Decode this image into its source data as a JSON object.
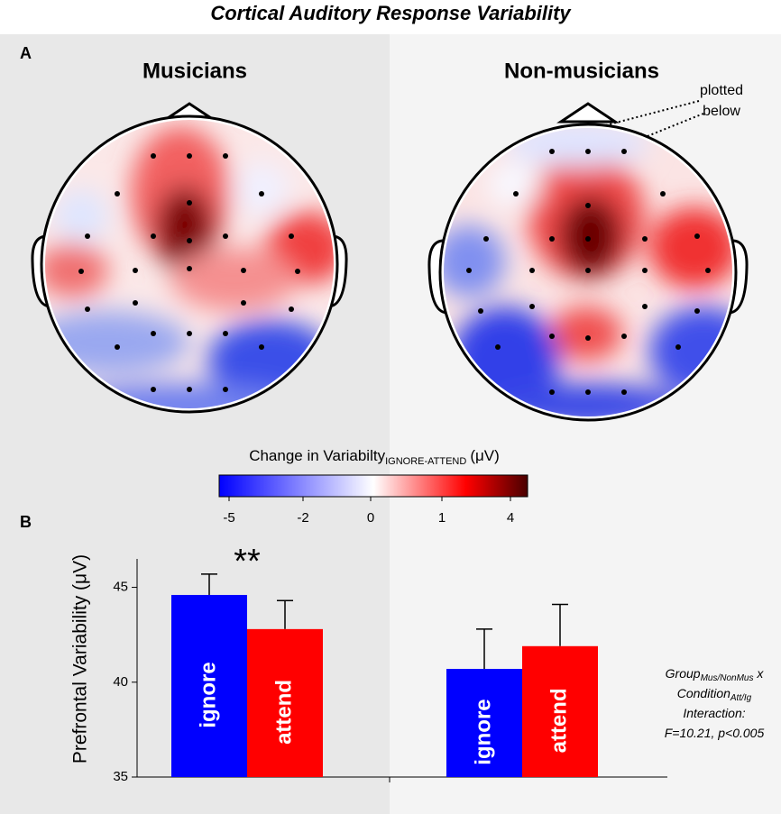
{
  "title": "Cortical Auditory Response Variability",
  "panel_a": {
    "label": "A",
    "maps": [
      {
        "title": "Musicians"
      },
      {
        "title": "Non-musicians"
      }
    ],
    "annotation": [
      "plotted",
      "below"
    ]
  },
  "colorbar": {
    "title": "Change in Variabilty",
    "title_sub": "IGNORE-ATTEND",
    "title_unit": "(μV)",
    "ticks": [
      -5,
      -2,
      0,
      1,
      4
    ],
    "colors": [
      "#0000ff",
      "#ffffff",
      "#ff0000",
      "#4a0000"
    ]
  },
  "chart_data": {
    "type": "bar",
    "panel_label": "B",
    "ylabel": "Prefrontal Variability (μV)",
    "categories": [
      null,
      null
    ],
    "series": [
      {
        "name": "ignore",
        "color": "#0000ff",
        "values": [
          44.6,
          40.7
        ],
        "errors": [
          1.1,
          2.1
        ]
      },
      {
        "name": "attend",
        "color": "#ff0000",
        "values": [
          42.8,
          41.9
        ],
        "errors": [
          1.5,
          2.2
        ]
      }
    ],
    "ylim": [
      35,
      46.5
    ],
    "yticks": [
      35,
      40,
      45
    ],
    "significance": "**",
    "interaction": [
      [
        "Group",
        "Mus/NonMus",
        " x"
      ],
      [
        "Condition",
        "Att/Ig"
      ],
      [
        "Interaction:"
      ],
      [
        "F=10.21, p<0.005"
      ]
    ]
  }
}
